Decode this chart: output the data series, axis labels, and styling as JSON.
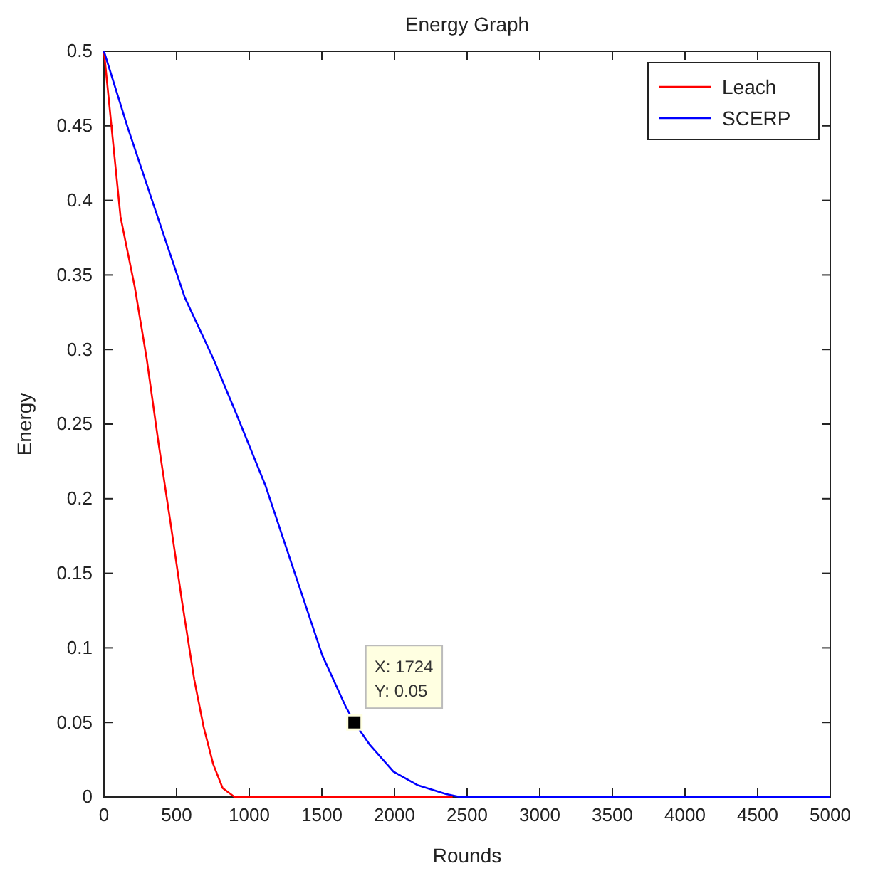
{
  "chart_data": {
    "type": "line",
    "title": "Energy Graph",
    "xlabel": "Rounds",
    "ylabel": "Energy",
    "xlim": [
      0,
      5000
    ],
    "xticks": [
      0,
      500,
      1000,
      1500,
      2000,
      2500,
      3000,
      3500,
      4000,
      4500,
      5000
    ],
    "ylim": [
      0,
      0.5
    ],
    "yticks": [
      0,
      0.05,
      0.1,
      0.15,
      0.2,
      0.25,
      0.3,
      0.35,
      0.4,
      0.45,
      0.5
    ],
    "grid": false,
    "legend": "top right",
    "marker": "none",
    "line_style": "solid",
    "series": [
      {
        "name": "Leach",
        "color": "#ff0000",
        "x": [
          0,
          114,
          212,
          294,
          376,
          458,
          539,
          621,
          686,
          752,
          817,
          899,
          2400
        ],
        "values": [
          0.5,
          0.389,
          0.342,
          0.294,
          0.237,
          0.184,
          0.13,
          0.079,
          0.047,
          0.022,
          0.006,
          0,
          0
        ]
      },
      {
        "name": "SCERP",
        "color": "#0000ff",
        "x": [
          0,
          163,
          359,
          556,
          752,
          915,
          1111,
          1307,
          1503,
          1667,
          1724,
          1830,
          1993,
          2157,
          2353,
          2450,
          5000
        ],
        "values": [
          0.5,
          0.449,
          0.392,
          0.335,
          0.294,
          0.256,
          0.209,
          0.152,
          0.095,
          0.06,
          0.05,
          0.035,
          0.017,
          0.008,
          0.002,
          0,
          0
        ]
      }
    ],
    "annotations": [
      {
        "text": "X: 1724\nY: 0.05",
        "x": 1724,
        "y": 0.05
      }
    ]
  }
}
